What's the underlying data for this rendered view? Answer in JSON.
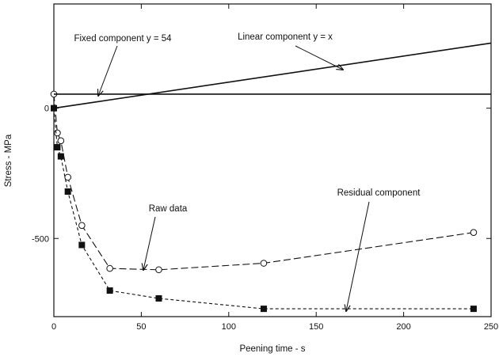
{
  "chart_data": {
    "type": "line",
    "title": "",
    "xlabel": "Peening time - s",
    "ylabel": "Stress - MPa",
    "xlim": [
      0,
      250
    ],
    "ylim": [
      -800,
      400
    ],
    "x_ticks": [
      0,
      50,
      100,
      150,
      200,
      250
    ],
    "y_ticks": [
      -500,
      0
    ],
    "x_tick_labels": [
      "0",
      "50",
      "100",
      "150",
      "200",
      "250"
    ],
    "y_tick_labels": [
      "-500",
      "0"
    ],
    "grid": false,
    "legend": "none",
    "series": [
      {
        "name": "Raw data",
        "marker": "open-circle",
        "line": "long-dash",
        "x": [
          0,
          2,
          4,
          8,
          16,
          32,
          60,
          120,
          240
        ],
        "y": [
          54,
          -95,
          -125,
          -265,
          -450,
          -615,
          -620,
          -595,
          -477
        ]
      },
      {
        "name": "Residual component",
        "marker": "filled-square",
        "line": "short-dash",
        "x": [
          0,
          2,
          4,
          8,
          16,
          32,
          60,
          120,
          240
        ],
        "y": [
          0,
          -150,
          -185,
          -320,
          -525,
          -700,
          -730,
          -770,
          -770
        ]
      },
      {
        "name": "Fixed component y = 54",
        "marker": "none",
        "line": "solid",
        "x": [
          0,
          250
        ],
        "y": [
          54,
          54
        ]
      },
      {
        "name": "Linear component y = x",
        "marker": "none",
        "line": "solid",
        "x": [
          0,
          250
        ],
        "y": [
          0,
          250
        ]
      }
    ],
    "annotations": [
      {
        "text": "Fixed component y = 54",
        "points_to": [
          25,
          54
        ]
      },
      {
        "text": "Linear component y = x",
        "points_to": [
          168,
          168
        ]
      },
      {
        "text": "Raw data",
        "points_to": [
          52,
          -620
        ]
      },
      {
        "text": "Residual component",
        "points_to": [
          168,
          -775
        ]
      }
    ]
  }
}
